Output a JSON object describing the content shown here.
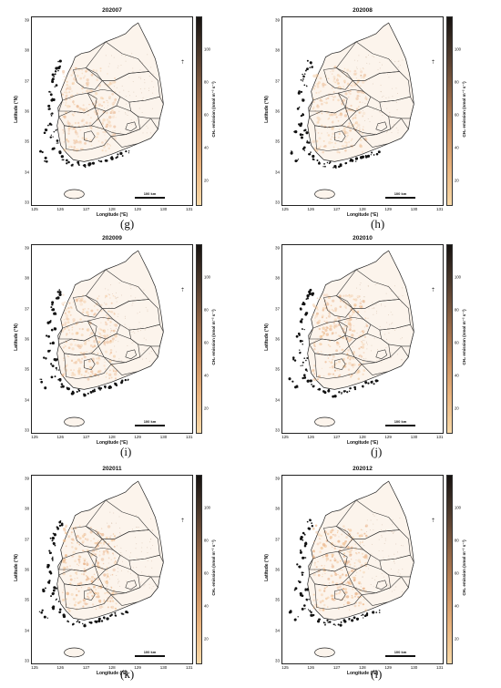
{
  "panels": [
    {
      "title": "202007",
      "tag": ""
    },
    {
      "title": "202008",
      "tag": ""
    },
    {
      "title": "202009",
      "tag": "(g)"
    },
    {
      "title": "202010",
      "tag": "(h)"
    },
    {
      "title": "202011",
      "tag": "(i)"
    },
    {
      "title": "202012",
      "tag": "(j)"
    }
  ],
  "bottom_tags": [
    "(k)",
    "(l)"
  ],
  "axes": {
    "xlabel": "Longitude (°E)",
    "ylabel": "Latitude (°N)",
    "xticks": [
      "125",
      "126",
      "127",
      "128",
      "129",
      "130",
      "131"
    ],
    "yticks": [
      "39",
      "38",
      "37",
      "36",
      "35",
      "34",
      "33"
    ]
  },
  "colorbar": {
    "label": "CH₄ emission (nmol m⁻² s⁻¹)",
    "ticks": [
      "100",
      "80",
      "60",
      "40",
      "20"
    ],
    "colors": [
      "#f7d9a8",
      "#e9b37e",
      "#c58a5b",
      "#8e6344",
      "#4e3a2c",
      "#161210"
    ]
  },
  "scalebar_label": "100 km",
  "north_arrow": "north-arrow-icon",
  "emission_intensity": [
    0.55,
    0.55,
    0.6,
    0.7,
    0.75,
    0.8
  ]
}
